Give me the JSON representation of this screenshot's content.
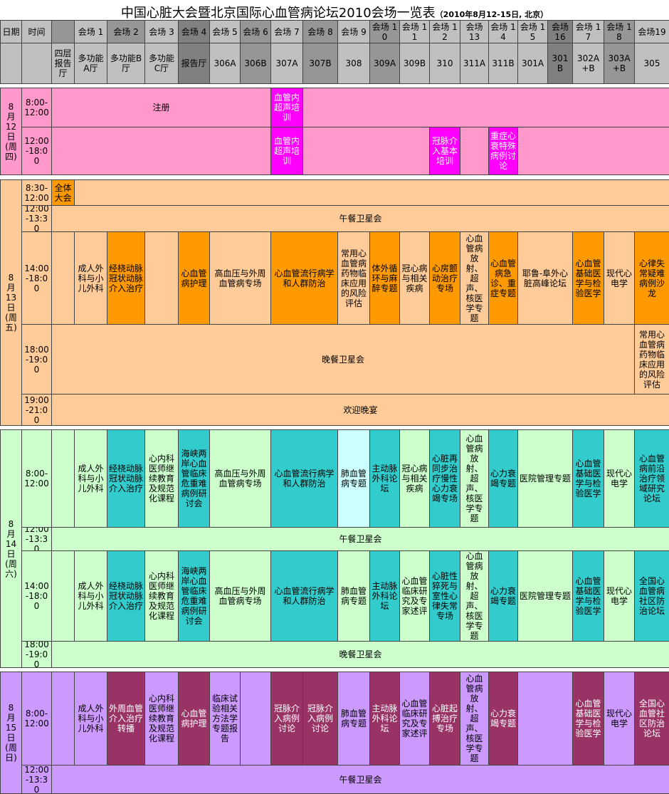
{
  "header": {
    "title": "中国心脏大会暨北京国际心血管病论坛2010会场一览表",
    "subtitle": "（2010年8月12-15日, 北京）"
  },
  "table": {
    "date_label": "日期",
    "time_label": "时间",
    "columns": [
      {
        "room": "四层报告厅"
      },
      {
        "name": "会场 1",
        "room": "多功能A厅"
      },
      {
        "name": "会场 2",
        "room": "多功能B厅"
      },
      {
        "name": "会场 3",
        "room": "多功能C厅"
      },
      {
        "name": "会场 4",
        "room": "报告厅"
      },
      {
        "name": "会场 5",
        "room": "306A"
      },
      {
        "name": "会场 6",
        "room": "306B"
      },
      {
        "name": "会场 7",
        "room": "307A"
      },
      {
        "name": "会场 8",
        "room": "307B"
      },
      {
        "name": "会场 9",
        "room": "308"
      },
      {
        "name": "会场 10",
        "room": "309A"
      },
      {
        "name": "会场 11",
        "room": "309B"
      },
      {
        "name": "会场 12",
        "room": "310"
      },
      {
        "name": "会场 13",
        "room": "311A"
      },
      {
        "name": "会场 14",
        "room": "311B"
      },
      {
        "name": "会场 15",
        "room": "301A"
      },
      {
        "name": "会场 16",
        "room": "301B"
      },
      {
        "name": "会场 17",
        "room": "302A+B"
      },
      {
        "name": "会场 18",
        "room": "303A+B"
      },
      {
        "name": "会场19",
        "room": "305"
      }
    ],
    "days": [
      {
        "date": "8月12日(周四)",
        "rows": [
          {
            "time": "8:00-12:00",
            "cells": [
              "注册",
              "血管内超声培训"
            ]
          },
          {
            "time": "12:00-18:00",
            "cells": [
              "血管内超声培训",
              "冠脉介入基本培训",
              "重症心衰特殊病例讨论"
            ]
          }
        ]
      },
      {
        "date": "8月13日(周五)",
        "rows": [
          {
            "time": "8:30-12:00",
            "cells": [
              "全体大会"
            ]
          },
          {
            "time": "12:00-13:30",
            "cells": [
              "午餐卫星会"
            ]
          },
          {
            "time": "14:00-18:00",
            "cells": [
              "成人外科与小儿外科",
              "经桡动脉冠状动脉介入治疗",
              "心血管病护理",
              "高血压与外周血管病专场",
              "心血管流行病学和人群防治",
              "常用心血管病药物临床应用的风险评估",
              "体外循环与麻醉专题",
              "冠心病与相关疾病",
              "心房颤动治疗专场",
              "心血管病放射、超声、核医学专题",
              "心血管病急诊、重症专题",
              "耶鲁-阜外心脏高峰论坛",
              "心血管基础医学与检验医学",
              "现代心电学",
              "心律失常疑难病例沙龙"
            ]
          },
          {
            "time": "18:00-19:00",
            "cells": [
              "晚餐卫星会",
              "常用心血管病药物临床应用的风险评估"
            ]
          },
          {
            "time": "19:00-21:00",
            "cells": [
              "欢迎晚宴"
            ]
          }
        ]
      },
      {
        "date": "8月14日(周六)",
        "rows": [
          {
            "time": "8:00-12:00",
            "cells": [
              "成人外科与小儿外科",
              "经桡动脉冠状动脉介入治疗",
              "心内科医师继续教育及规范化课程",
              "海峡两岸心血管临床危重难病例研讨会",
              "高血压与外周血管病专场",
              "心血管流行病学和人群防治",
              "肺血管病专题",
              "主动脉外科论坛",
              "冠心病与相关疾病",
              "心脏再同步治疗慢性心力衰竭专场",
              "心血管病放射、超声、核医学专题",
              "心力衰竭专题",
              "医院管理专题",
              "心血管基础医学与检验医学",
              "现代心电学",
              "心血管病前沿治疗领域研究论坛"
            ]
          },
          {
            "time": "12:00-13:30",
            "cells": [
              "午餐卫星会"
            ]
          },
          {
            "time": "14:00-18:00",
            "cells": [
              "成人外科与小儿外科",
              "经桡动脉冠状动脉介入治疗",
              "心内科医师继续教育及规范化课程",
              "海峡两岸心血管临床危重难病例研讨会",
              "高血压与外周血管病专场",
              "心血管流行病学和人群防治",
              "肺血管病专题",
              "主动脉外科论坛",
              "心血管临床研究及专家述评",
              "心脏性猝死与室性心律失常专场",
              "心血管病放射、超声、核医学专题",
              "心力衰竭专题",
              "医院管理专题",
              "心血管基础医学与检验医学",
              "现代心电学",
              "全国心血管病社区防治论坛"
            ]
          },
          {
            "time": "18:00-19:00",
            "cells": [
              "晚餐卫星会"
            ]
          }
        ]
      },
      {
        "date": "8月15日(周日)",
        "rows": [
          {
            "time": "8:00-12:00",
            "cells": [
              "成人外科与小儿外科",
              "外周血管介入治疗转播",
              "心内科医师继续教育及规范化课程",
              "心血管病护理",
              "临床试验相关方法学专题报告",
              "冠脉介入病例讨论",
              "冠脉介入病例讨论",
              "肺血管病专题",
              "主动脉外科论坛",
              "心血管临床研究及专家述评",
              "心脏起搏治疗专场",
              "心血管病放射、超声、核医学专题",
              "心力衰竭专题",
              "心血管基础医学与检验医学",
              "现代心电学",
              "全国心血管社区防治论坛"
            ]
          },
          {
            "time": "12:00-13:30",
            "cells": [
              "午餐卫星会"
            ]
          }
        ]
      }
    ]
  }
}
